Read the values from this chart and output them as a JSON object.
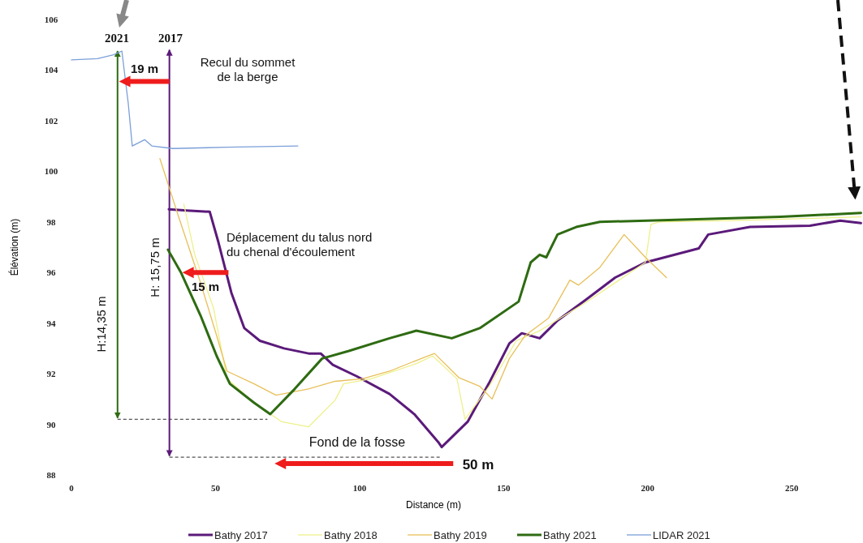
{
  "chart_data": {
    "type": "line",
    "xlabel": "Distance (m)",
    "ylabel": "Élévation (m)",
    "xlim": [
      0,
      275
    ],
    "xticks": [
      0,
      50,
      100,
      150,
      200,
      250
    ],
    "ylim": [
      88,
      106
    ],
    "yticks": [
      88,
      90,
      92,
      94,
      96,
      98,
      100,
      102,
      104,
      106
    ],
    "grid": false,
    "legend": "bottom",
    "marker": "none",
    "line_style": "solid",
    "series": [
      {
        "name": "Bathy 2017",
        "color": "#5b1a7a",
        "x": [
          33.8,
          40,
          48,
          51,
          55.5,
          60,
          65.4,
          73.8,
          82.3,
          86.5,
          90.7,
          99,
          110.4,
          119,
          127.3,
          128.5,
          137.5,
          144.8,
          152,
          156.3,
          162.5,
          168.7,
          178.3,
          188.7,
          199.2,
          217.7,
          221,
          235.5,
          256.3,
          266.8,
          274
        ],
        "values": [
          98.5,
          98.45,
          98.4,
          97.2,
          95.2,
          93.8,
          93.3,
          93,
          92.8,
          92.8,
          92.35,
          91.9,
          91.2,
          90.4,
          89.3,
          89.1,
          90.1,
          91.6,
          93.2,
          93.6,
          93.4,
          94.1,
          94.9,
          95.8,
          96.4,
          96.95,
          97.5,
          97.8,
          97.85,
          98.05,
          97.95
        ]
      },
      {
        "name": "Bathy 2018",
        "color": "#eef08a",
        "x": [
          39,
          42.8,
          49.3,
          54,
          63.4,
          73,
          82.3,
          91.5,
          94.4,
          104,
          119.7,
          125.4,
          133.8,
          136.6,
          145,
          154.4,
          162.5,
          178.3,
          199.2,
          201.1,
          204,
          230,
          274
        ],
        "values": [
          98.7,
          96.7,
          94.6,
          91.8,
          90.85,
          90.1,
          89.9,
          90.95,
          91.6,
          91.8,
          92.4,
          92.7,
          91.8,
          90.2,
          91.5,
          93.3,
          93.7,
          94.8,
          96.4,
          97.9,
          98,
          98.05,
          98.2
        ]
      },
      {
        "name": "Bathy 2019",
        "color": "#e8c05a",
        "x": [
          30.7,
          37.2,
          44.8,
          50.4,
          54,
          63.4,
          71,
          82.3,
          91.5,
          101,
          110.4,
          122.5,
          126,
          134.4,
          141.7,
          146,
          152,
          157.4,
          165.6,
          173,
          176,
          183.4,
          191.8,
          199.2,
          206.5
        ],
        "values": [
          100.5,
          98.2,
          95.6,
          93.5,
          92.1,
          91.6,
          91.15,
          91.4,
          91.7,
          91.8,
          92.1,
          92.65,
          92.8,
          91.85,
          91.5,
          91,
          92.6,
          93.5,
          94.2,
          95.7,
          95.5,
          96.2,
          97.5,
          96.6,
          95.8
        ]
      },
      {
        "name": "Bathy 2021",
        "color": "#2e6b12",
        "x": [
          33.5,
          38,
          44.8,
          50.4,
          55,
          63.4,
          69,
          77.5,
          87,
          96.3,
          110.4,
          119.7,
          132,
          141.7,
          155.2,
          159.4,
          162.5,
          164.8,
          168.7,
          175.2,
          183.4,
          214.6,
          246,
          274
        ],
        "values": [
          96.9,
          96,
          94.3,
          92.7,
          91.6,
          90.85,
          90.4,
          91.4,
          92.6,
          92.9,
          93.4,
          93.7,
          93.4,
          93.8,
          94.85,
          96.4,
          96.7,
          96.6,
          97.5,
          97.8,
          98,
          98.1,
          98.2,
          98.35
        ]
      },
      {
        "name": "LIDAR 2021",
        "color": "#7b9fd8",
        "x": [
          0,
          9,
          14.6,
          17.5,
          19.7,
          21.1,
          25.4,
          27.9,
          35.2,
          54,
          78.6
        ],
        "values": [
          104.4,
          104.45,
          104.6,
          104.75,
          102.7,
          101,
          101.25,
          101,
          100.9,
          100.95,
          101
        ]
      }
    ],
    "ref_lines": [
      {
        "axis": "x",
        "value": 16,
        "color": "#2e6b12"
      },
      {
        "axis": "x",
        "value": 34,
        "color": "#5b1a7a"
      }
    ],
    "annotations": [
      "2021",
      "2017",
      "19 m",
      "Recul du sommet de la berge",
      "H:14,35 m",
      "H: 15,75 m",
      "Déplacement du talus nord du chenal d'écoulement",
      "15 m",
      "Fond de la fosse",
      "50 m"
    ]
  }
}
